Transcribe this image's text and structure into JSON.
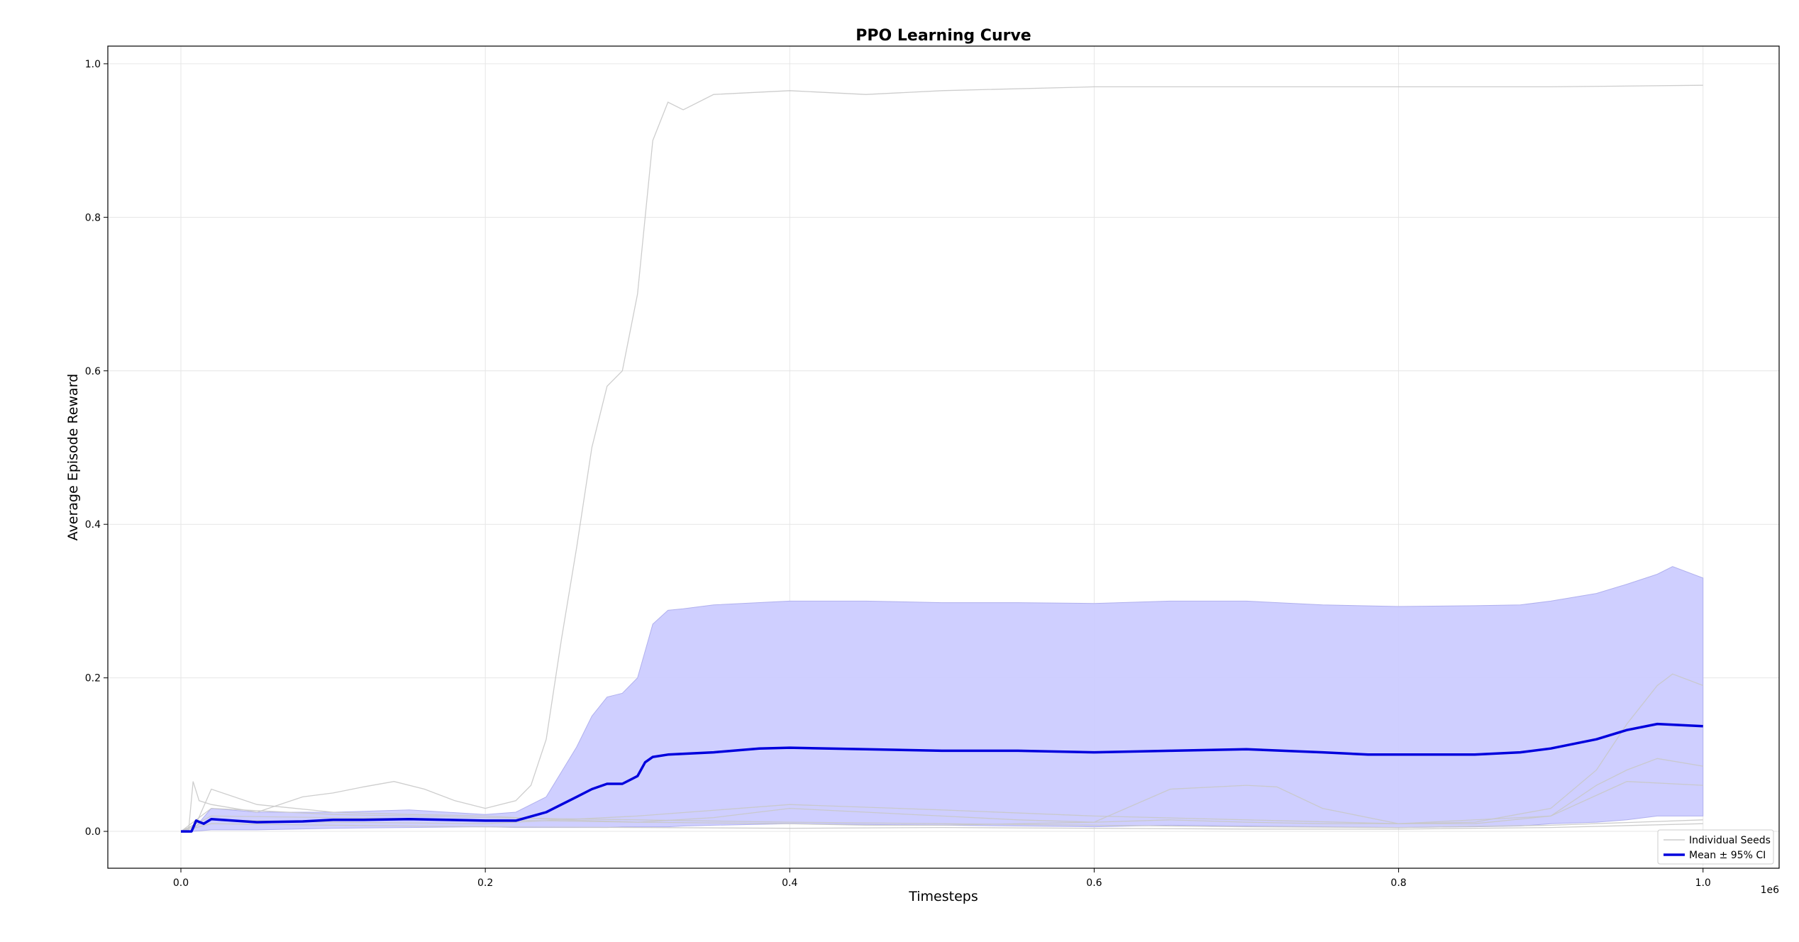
{
  "chart_data": {
    "type": "line",
    "title": "PPO Learning Curve",
    "xlabel": "Timesteps",
    "ylabel": "Average Episode Reward",
    "x_scale_label": "1e6",
    "xlim": [
      -0.048,
      1.05
    ],
    "ylim": [
      -0.048,
      1.023
    ],
    "x_ticks": [
      0.0,
      0.2,
      0.4,
      0.6,
      0.8,
      1.0
    ],
    "x_tick_labels": [
      "0.0",
      "0.2",
      "0.4",
      "0.6",
      "0.8",
      "1.0"
    ],
    "y_ticks": [
      0.0,
      0.2,
      0.4,
      0.6,
      0.8,
      1.0
    ],
    "y_tick_labels": [
      "0.0",
      "0.2",
      "0.4",
      "0.6",
      "0.8",
      "1.0"
    ],
    "grid": true,
    "legend_position": "bottom-right",
    "legend": [
      {
        "label": "Individual Seeds",
        "color": "#cccccc"
      },
      {
        "label": "Mean ± 95% CI",
        "color": "#0000dd"
      }
    ],
    "colors": {
      "seed": "#c8c8c8",
      "mean": "#0000dd",
      "ci_fill": "#ccccff",
      "ci_edge": "#b0b0ee",
      "grid": "#e6e6e6"
    },
    "seeds": [
      {
        "x": [
          0,
          0.005,
          0.008,
          0.012,
          0.02,
          0.05,
          0.08,
          0.1,
          0.12,
          0.14,
          0.16,
          0.18,
          0.2,
          0.22,
          0.23,
          0.24,
          0.25,
          0.26,
          0.27,
          0.28,
          0.29,
          0.3,
          0.31,
          0.32,
          0.33,
          0.35,
          0.4,
          0.45,
          0.5,
          0.6,
          0.7,
          0.8,
          0.9,
          1.0
        ],
        "y": [
          0,
          0,
          0.065,
          0.04,
          0.035,
          0.025,
          0.045,
          0.05,
          0.058,
          0.065,
          0.055,
          0.04,
          0.03,
          0.04,
          0.06,
          0.12,
          0.25,
          0.37,
          0.5,
          0.58,
          0.6,
          0.7,
          0.9,
          0.95,
          0.94,
          0.96,
          0.965,
          0.96,
          0.965,
          0.97,
          0.97,
          0.97,
          0.97,
          0.972
        ]
      },
      {
        "x": [
          0,
          0.01,
          0.02,
          0.05,
          0.1,
          0.15,
          0.2,
          0.25,
          0.3,
          0.35,
          0.4,
          0.45,
          0.5,
          0.55,
          0.6,
          0.65,
          0.7,
          0.75,
          0.8,
          0.85,
          0.9,
          0.93,
          0.95,
          0.97,
          0.98,
          1.0
        ],
        "y": [
          0,
          0.01,
          0.055,
          0.035,
          0.025,
          0.022,
          0.02,
          0.015,
          0.012,
          0.018,
          0.03,
          0.025,
          0.02,
          0.015,
          0.012,
          0.015,
          0.012,
          0.01,
          0.01,
          0.012,
          0.03,
          0.08,
          0.14,
          0.19,
          0.205,
          0.19
        ]
      },
      {
        "x": [
          0,
          0.02,
          0.1,
          0.2,
          0.3,
          0.4,
          0.45,
          0.5,
          0.55,
          0.6,
          0.65,
          0.7,
          0.72,
          0.75,
          0.8,
          0.85,
          0.9,
          0.93,
          0.95,
          0.97,
          1.0
        ],
        "y": [
          0,
          0.02,
          0.018,
          0.015,
          0.012,
          0.01,
          0.008,
          0.008,
          0.01,
          0.012,
          0.055,
          0.06,
          0.058,
          0.03,
          0.01,
          0.01,
          0.02,
          0.06,
          0.08,
          0.095,
          0.085
        ]
      },
      {
        "x": [
          0,
          0.02,
          0.1,
          0.2,
          0.3,
          0.4,
          0.5,
          0.6,
          0.7,
          0.8,
          0.9,
          0.95,
          1.0
        ],
        "y": [
          0,
          0.015,
          0.012,
          0.01,
          0.02,
          0.035,
          0.028,
          0.02,
          0.015,
          0.01,
          0.02,
          0.065,
          0.06
        ]
      },
      {
        "x": [
          0,
          0.02,
          0.1,
          0.2,
          0.3,
          0.4,
          0.5,
          0.6,
          0.7,
          0.8,
          0.9,
          1.0
        ],
        "y": [
          0,
          0.03,
          0.022,
          0.018,
          0.015,
          0.012,
          0.01,
          0.008,
          0.006,
          0.005,
          0.008,
          0.015
        ]
      },
      {
        "x": [
          0,
          0.02,
          0.1,
          0.2,
          0.3,
          0.4,
          0.5,
          0.6,
          0.7,
          0.8,
          0.9,
          1.0
        ],
        "y": [
          0,
          0.01,
          0.008,
          0.006,
          0.005,
          0.004,
          0.005,
          0.004,
          0.003,
          0.003,
          0.005,
          0.01
        ]
      }
    ],
    "mean": {
      "x": [
        0,
        0.007,
        0.01,
        0.015,
        0.02,
        0.05,
        0.08,
        0.1,
        0.12,
        0.15,
        0.2,
        0.22,
        0.24,
        0.26,
        0.27,
        0.28,
        0.29,
        0.3,
        0.305,
        0.31,
        0.32,
        0.35,
        0.38,
        0.4,
        0.45,
        0.5,
        0.55,
        0.6,
        0.65,
        0.7,
        0.75,
        0.78,
        0.8,
        0.85,
        0.88,
        0.9,
        0.93,
        0.95,
        0.97,
        1.0
      ],
      "y": [
        0,
        0,
        0.014,
        0.01,
        0.016,
        0.012,
        0.013,
        0.015,
        0.015,
        0.016,
        0.014,
        0.014,
        0.025,
        0.045,
        0.055,
        0.062,
        0.062,
        0.072,
        0.09,
        0.097,
        0.1,
        0.103,
        0.108,
        0.109,
        0.107,
        0.105,
        0.105,
        0.103,
        0.105,
        0.107,
        0.103,
        0.1,
        0.1,
        0.1,
        0.103,
        0.108,
        0.12,
        0.132,
        0.14,
        0.137
      ]
    },
    "ci": {
      "x": [
        0,
        0.007,
        0.02,
        0.05,
        0.1,
        0.15,
        0.2,
        0.22,
        0.24,
        0.26,
        0.27,
        0.28,
        0.29,
        0.3,
        0.31,
        0.32,
        0.33,
        0.35,
        0.4,
        0.45,
        0.5,
        0.55,
        0.6,
        0.65,
        0.7,
        0.75,
        0.8,
        0.85,
        0.88,
        0.9,
        0.93,
        0.95,
        0.97,
        0.98,
        1.0
      ],
      "upper": [
        0,
        0,
        0.03,
        0.025,
        0.025,
        0.028,
        0.022,
        0.025,
        0.045,
        0.11,
        0.15,
        0.175,
        0.18,
        0.2,
        0.27,
        0.288,
        0.29,
        0.295,
        0.3,
        0.3,
        0.298,
        0.298,
        0.297,
        0.3,
        0.3,
        0.295,
        0.293,
        0.294,
        0.295,
        0.3,
        0.31,
        0.322,
        0.335,
        0.345,
        0.33
      ],
      "lower": [
        0,
        0,
        0.002,
        0.002,
        0.004,
        0.005,
        0.006,
        0.005,
        0.005,
        0.005,
        0.005,
        0.005,
        0.006,
        0.006,
        0.006,
        0.006,
        0.007,
        0.008,
        0.01,
        0.009,
        0.008,
        0.007,
        0.006,
        0.008,
        0.007,
        0.006,
        0.005,
        0.006,
        0.007,
        0.01,
        0.012,
        0.015,
        0.02,
        0.02,
        0.02
      ]
    }
  }
}
